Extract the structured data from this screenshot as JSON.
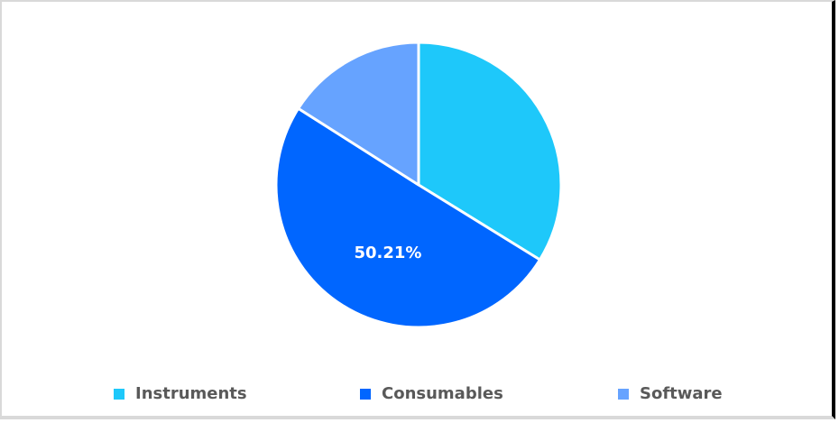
{
  "chart_data": {
    "type": "pie",
    "title": "",
    "categories": [
      "Instruments",
      "Consumables",
      "Software"
    ],
    "values": [
      33.8,
      50.21,
      15.99
    ],
    "colors": [
      "#1ec8fa",
      "#0066ff",
      "#66a3ff"
    ],
    "data_labels": [
      null,
      "50.21%",
      null
    ],
    "start_angle_deg": 0,
    "direction": "clockwise",
    "legend_position": "bottom"
  },
  "legend": {
    "items": [
      {
        "label": "Instruments",
        "color": "#1ec8fa"
      },
      {
        "label": "Consumables",
        "color": "#0066ff"
      },
      {
        "label": "Software",
        "color": "#66a3ff"
      }
    ]
  },
  "labels": {
    "consumables_pct": "50.21%"
  }
}
